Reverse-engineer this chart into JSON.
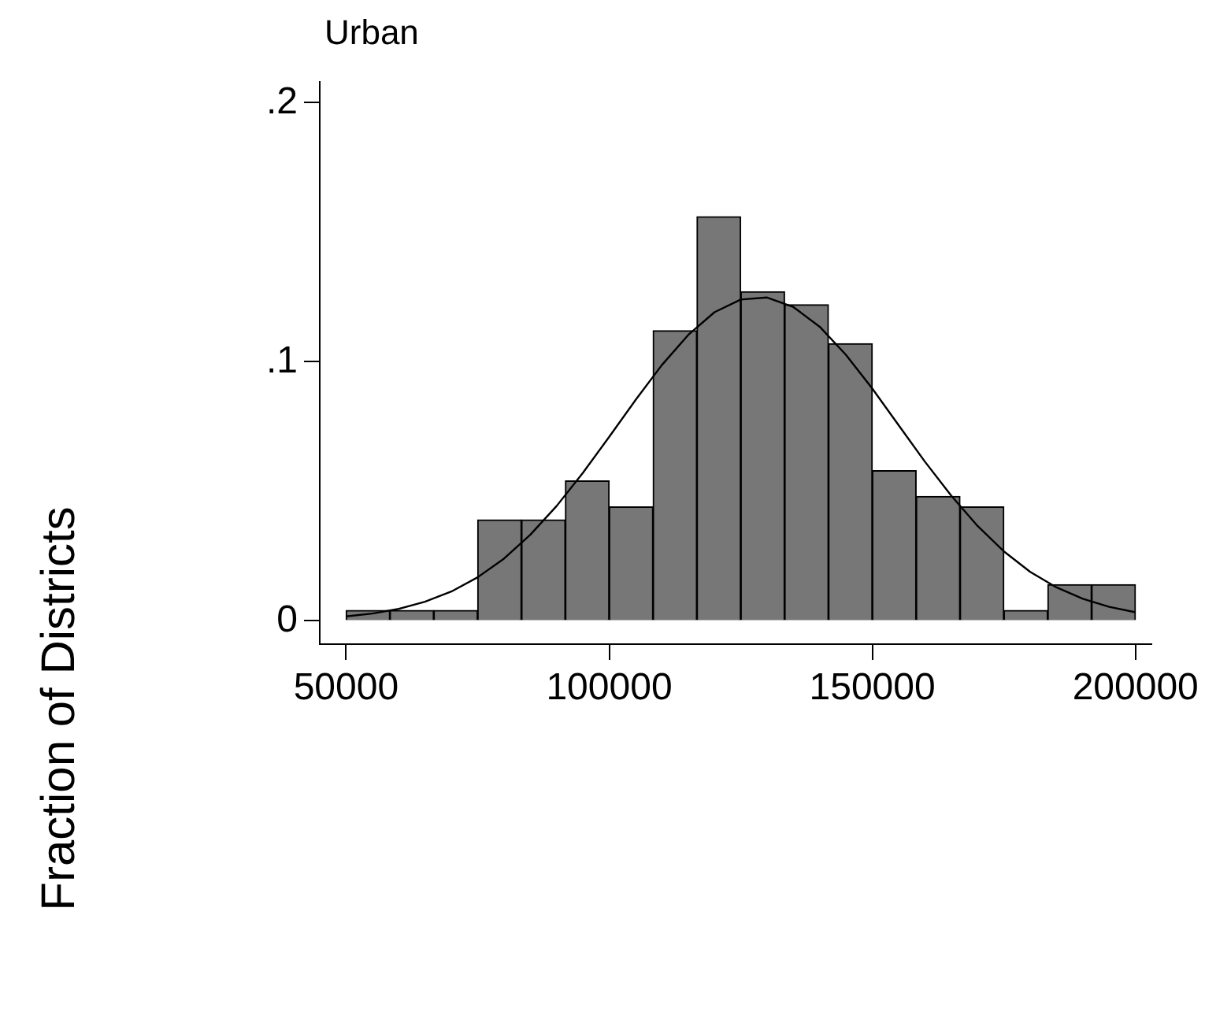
{
  "chart_data": {
    "type": "histogram",
    "title": "Urban",
    "ylabel": "Fraction of Districts",
    "bins": [
      50000,
      58333.33,
      66666.67,
      75000,
      83333.33,
      91666.67,
      100000,
      108333.33,
      116666.67,
      125000,
      133333.33,
      141666.67,
      150000,
      158333.33,
      166666.67,
      175000,
      183333.33,
      191666.67,
      200000
    ],
    "values": [
      0.004,
      0.004,
      0.004,
      0.039,
      0.039,
      0.054,
      0.044,
      0.112,
      0.156,
      0.127,
      0.122,
      0.107,
      0.058,
      0.048,
      0.044,
      0.004,
      0.014,
      0.014
    ],
    "color": "#777777",
    "series": [
      {
        "type": "line",
        "color": "#000000",
        "x": [
          50000,
          55000,
          60000,
          65000,
          70000,
          75000,
          80000,
          85000,
          90000,
          95000,
          100000,
          105000,
          110000,
          115000,
          120000,
          125000,
          130000,
          135000,
          140000,
          145000,
          150000,
          155000,
          160000,
          165000,
          170000,
          175000,
          180000,
          185000,
          190000,
          195000,
          200000
        ],
        "values": [
          0.0017,
          0.0028,
          0.0046,
          0.0074,
          0.0113,
          0.0168,
          0.024,
          0.0332,
          0.0443,
          0.0571,
          0.071,
          0.0852,
          0.0987,
          0.1103,
          0.1191,
          0.124,
          0.1248,
          0.1211,
          0.1135,
          0.1026,
          0.0896,
          0.0755,
          0.0614,
          0.0483,
          0.0366,
          0.0268,
          0.0189,
          0.0129,
          0.0085,
          0.0054,
          0.0033
        ]
      }
    ],
    "xlim": [
      45000,
      203000
    ],
    "xticks": [
      50000,
      100000,
      150000,
      200000
    ],
    "ylim": [
      -0.009,
      0.208
    ],
    "yticks": [
      {
        "value": 0,
        "label": "0"
      },
      {
        "value": 0.1,
        "label": ".1"
      },
      {
        "value": 0.2,
        "label": ".2"
      }
    ],
    "grid": false,
    "legend": false,
    "marker": "none",
    "line_style": "solid"
  }
}
